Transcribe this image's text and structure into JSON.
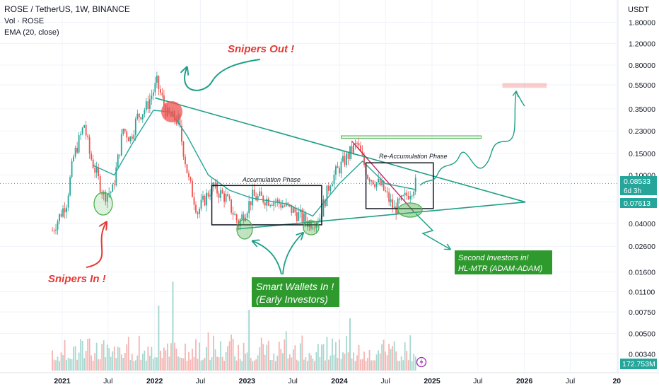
{
  "header": {
    "symbol_line": "ROSE / TetherUS, 1W, BINANCE",
    "volume_line": "Vol · ROSE",
    "ema_line": "EMA (20, close)"
  },
  "price_axis": {
    "currency": "USDT",
    "ticks": [
      "1.80000",
      "1.20000",
      "0.80000",
      "0.55000",
      "0.35000",
      "0.23000",
      "0.15000",
      "0.10000",
      "0.06000",
      "0.04000",
      "0.02600",
      "0.01600",
      "0.01100",
      "0.00750",
      "0.00500",
      "0.00340"
    ],
    "last_price": "0.08533",
    "countdown": "6d 3h",
    "ema_value": "0.07613",
    "volume_value": "172.753M"
  },
  "time_axis": {
    "ticks": [
      "2021",
      "Jul",
      "2022",
      "Jul",
      "2023",
      "Jul",
      "2024",
      "Jul",
      "2025",
      "Jul",
      "2026",
      "Jul",
      "20"
    ]
  },
  "annotations": {
    "snipers_out": "Snipers Out !",
    "snipers_in": "Snipers In !",
    "accumulation": "Accumulation Phase",
    "reaccumulation": "Re-Accumulation Phase",
    "smart_wallets_1": "Smart Wallets In !",
    "smart_wallets_2": "(Early Investors)",
    "second_investors_1": "Second Investors in!",
    "second_investors_2": "HL-MTR (ADAM-ADAM)"
  },
  "colors": {
    "up": "#26a69a",
    "down": "#ef5350",
    "ema": "#26a69a",
    "trendline": "#1f9f86",
    "annotation_red": "#e53935",
    "annotation_green_box": "#2e9a2e",
    "last_price_badge": "#26a69a"
  },
  "chart_data": {
    "type": "candlestick",
    "symbol": "ROSE / TetherUS",
    "interval": "1W",
    "exchange": "BINANCE",
    "scale": "log",
    "ylim": [
      0.003,
      1.8
    ],
    "xlim": [
      "2020-11-02",
      "2026-12-31"
    ],
    "indicators": [
      "Vol · ROSE",
      "EMA (20, close)"
    ],
    "price_path": [
      {
        "date": "2020-11-23",
        "close": 0.035
      },
      {
        "date": "2021-01-18",
        "close": 0.06
      },
      {
        "date": "2021-02-15",
        "close": 0.14
      },
      {
        "date": "2021-03-29",
        "close": 0.26
      },
      {
        "date": "2021-04-19",
        "close": 0.15
      },
      {
        "date": "2021-06-14",
        "close": 0.068
      },
      {
        "date": "2021-07-19",
        "close": 0.075
      },
      {
        "date": "2021-08-30",
        "close": 0.24
      },
      {
        "date": "2021-09-27",
        "close": 0.2
      },
      {
        "date": "2021-10-25",
        "close": 0.3
      },
      {
        "date": "2021-11-29",
        "close": 0.36
      },
      {
        "date": "2022-01-10",
        "close": 0.57
      },
      {
        "date": "2022-02-21",
        "close": 0.31
      },
      {
        "date": "2022-04-04",
        "close": 0.28
      },
      {
        "date": "2022-05-16",
        "close": 0.09
      },
      {
        "date": "2022-06-20",
        "close": 0.05
      },
      {
        "date": "2022-08-15",
        "close": 0.08
      },
      {
        "date": "2022-10-10",
        "close": 0.065
      },
      {
        "date": "2022-11-28",
        "close": 0.04
      },
      {
        "date": "2023-01-23",
        "close": 0.066
      },
      {
        "date": "2023-04-17",
        "close": 0.062
      },
      {
        "date": "2023-06-26",
        "close": 0.052
      },
      {
        "date": "2023-09-04",
        "close": 0.04
      },
      {
        "date": "2023-10-16",
        "close": 0.045
      },
      {
        "date": "2023-11-27",
        "close": 0.09
      },
      {
        "date": "2024-01-08",
        "close": 0.12
      },
      {
        "date": "2024-02-19",
        "close": 0.16
      },
      {
        "date": "2024-03-11",
        "close": 0.18
      },
      {
        "date": "2024-04-22",
        "close": 0.1
      },
      {
        "date": "2024-06-17",
        "close": 0.08
      },
      {
        "date": "2024-08-05",
        "close": 0.052
      },
      {
        "date": "2024-09-16",
        "close": 0.065
      },
      {
        "date": "2024-10-28",
        "close": 0.085
      }
    ],
    "ema_path": [
      {
        "date": "2021-05-03",
        "value": 0.12
      },
      {
        "date": "2021-07-26",
        "value": 0.1
      },
      {
        "date": "2021-10-04",
        "value": 0.18
      },
      {
        "date": "2021-12-27",
        "value": 0.34
      },
      {
        "date": "2022-03-07",
        "value": 0.33
      },
      {
        "date": "2022-05-09",
        "value": 0.21
      },
      {
        "date": "2022-08-01",
        "value": 0.1
      },
      {
        "date": "2022-10-24",
        "value": 0.075
      },
      {
        "date": "2023-01-16",
        "value": 0.065
      },
      {
        "date": "2023-06-05",
        "value": 0.058
      },
      {
        "date": "2023-09-18",
        "value": 0.046
      },
      {
        "date": "2024-01-01",
        "value": 0.085
      },
      {
        "date": "2024-04-01",
        "value": 0.13
      },
      {
        "date": "2024-07-01",
        "value": 0.085
      },
      {
        "date": "2024-10-28",
        "value": 0.07613
      }
    ],
    "volume_spikes": [
      {
        "date": "2022-03-14",
        "value": 0.0115
      },
      {
        "date": "2022-01-17",
        "value": 0.008
      },
      {
        "date": "2023-01-09",
        "value": 0.0075
      },
      {
        "date": "2024-02-12",
        "value": 0.0066
      }
    ],
    "drawings": {
      "triangle_upper": [
        {
          "date": "2022-01-03",
          "price": 0.43
        },
        {
          "date": "2026-01-05",
          "price": 0.06
        }
      ],
      "triangle_lower": [
        {
          "date": "2022-11-21",
          "price": 0.036
        },
        {
          "date": "2026-01-05",
          "price": 0.06
        }
      ],
      "accumulation_box": {
        "from": "2022-08-15",
        "to": "2023-10-23",
        "low": 0.039,
        "high": 0.082
      },
      "reaccumulation_box": {
        "from": "2024-04-15",
        "to": "2025-01-06",
        "low": 0.053,
        "high": 0.126
      },
      "resistance_zone": {
        "from": "2024-01-08",
        "to": "2025-07-14",
        "low": 0.2,
        "high": 0.21
      },
      "target_zone": {
        "from": "2025-10-06",
        "to": "2026-03-30",
        "low": 0.52,
        "high": 0.57
      },
      "pink_downtrend": [
        {
          "date": "2024-02-19",
          "price": 0.19
        },
        {
          "date": "2024-10-21",
          "price": 0.05
        }
      ]
    }
  }
}
